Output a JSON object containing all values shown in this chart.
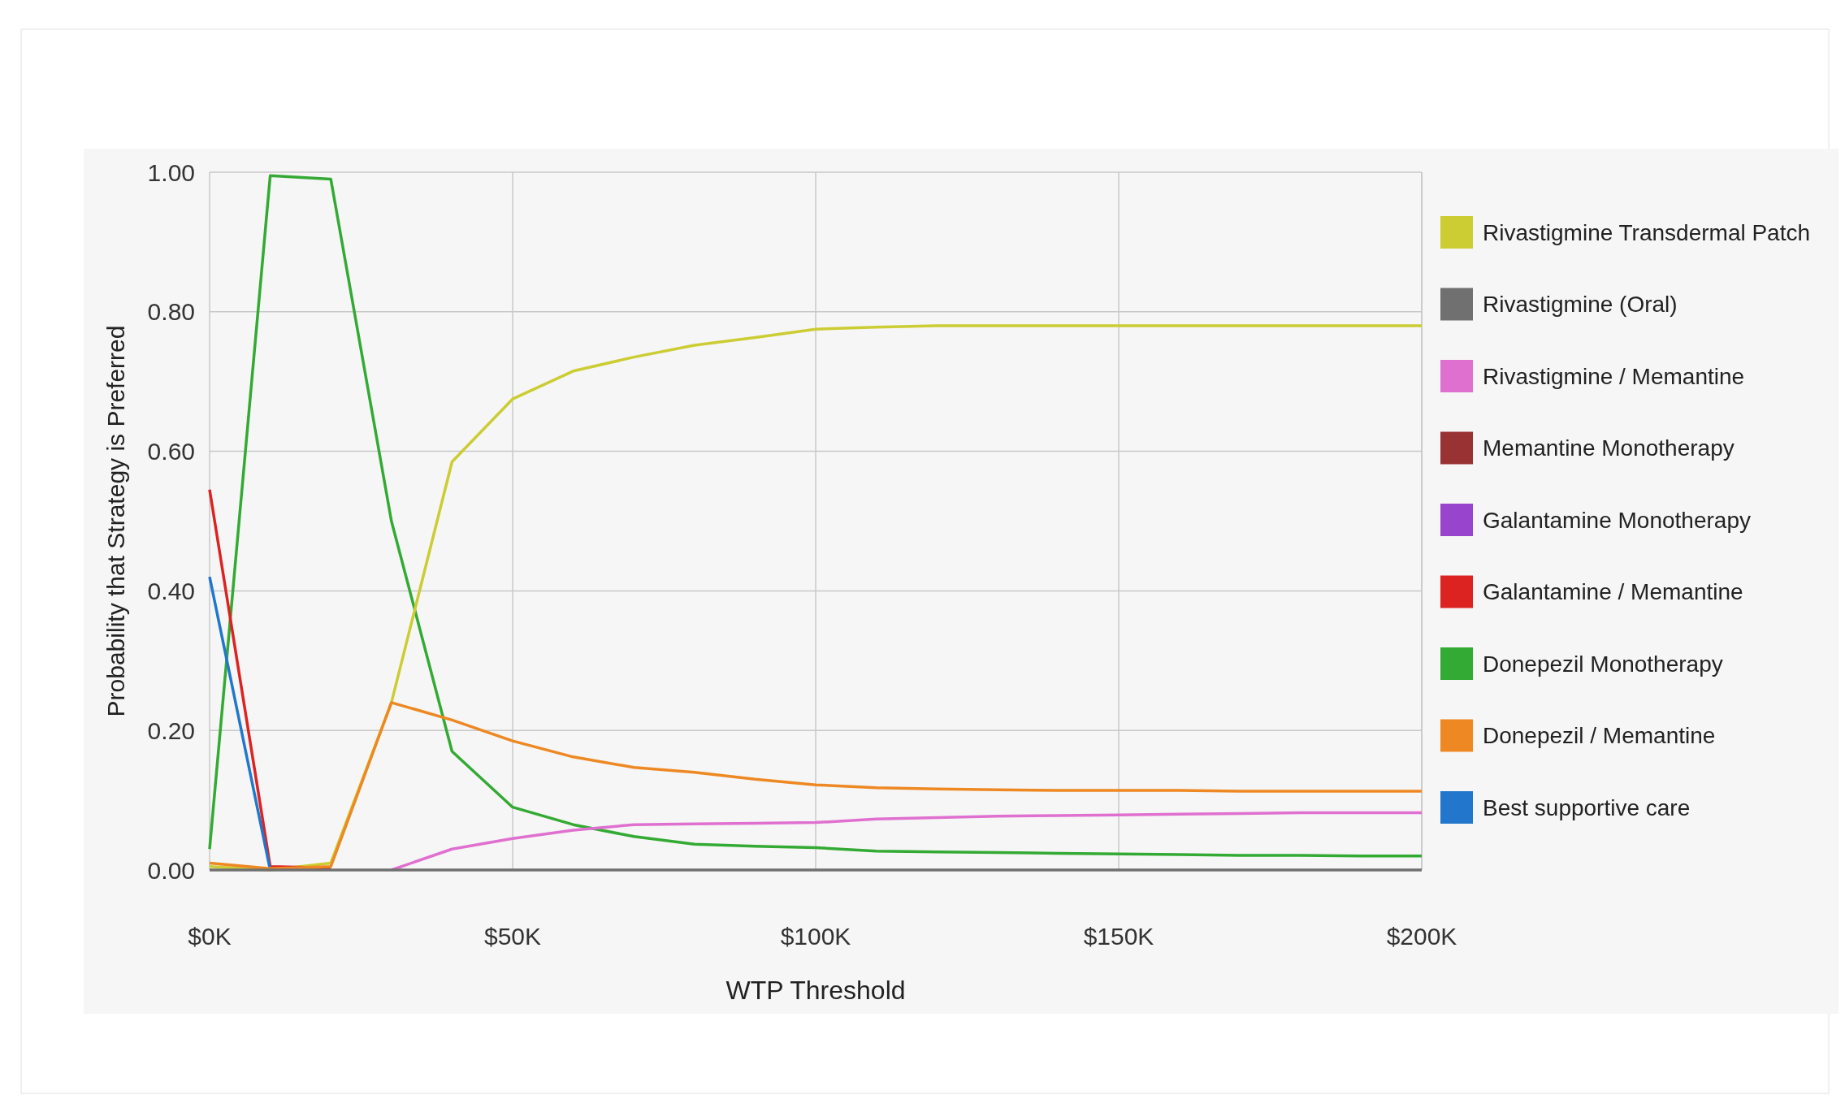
{
  "chart_data": {
    "type": "line",
    "xlabel": "WTP Threshold",
    "ylabel": "Probability that Strategy is Preferred",
    "x": [
      0,
      10,
      20,
      30,
      40,
      50,
      60,
      70,
      80,
      90,
      100,
      110,
      120,
      130,
      140,
      150,
      160,
      170,
      180,
      190,
      200
    ],
    "xlim": [
      0,
      200
    ],
    "xticks": [
      {
        "value": 0,
        "label": "$0K"
      },
      {
        "value": 50,
        "label": "$50K"
      },
      {
        "value": 100,
        "label": "$100K"
      },
      {
        "value": 150,
        "label": "$150K"
      },
      {
        "value": 200,
        "label": "$200K"
      }
    ],
    "ylim": [
      0,
      1
    ],
    "yticks": [
      {
        "value": 0,
        "label": "0.00"
      },
      {
        "value": 0.2,
        "label": "0.20"
      },
      {
        "value": 0.4,
        "label": "0.40"
      },
      {
        "value": 0.6,
        "label": "0.60"
      },
      {
        "value": 0.8,
        "label": "0.80"
      },
      {
        "value": 1,
        "label": "1.00"
      }
    ],
    "grid": true,
    "legend": "right",
    "marker": "none",
    "series": [
      {
        "name": "Rivastigmine Transdermal Patch",
        "color": "#cccc33",
        "values": [
          0.005,
          0,
          0.01,
          0.24,
          0.585,
          0.675,
          0.715,
          0.735,
          0.752,
          0.763,
          0.775,
          0.778,
          0.78,
          0.78,
          0.78,
          0.78,
          0.78,
          0.78,
          0.78,
          0.78,
          0.78
        ]
      },
      {
        "name": "Rivastigmine (Oral)",
        "color": "#707070",
        "values": [
          0,
          0,
          0,
          0,
          0,
          0,
          0,
          0,
          0,
          0,
          0,
          0,
          0,
          0,
          0,
          0,
          0,
          0,
          0,
          0,
          0
        ]
      },
      {
        "name": "Rivastigmine / Memantine",
        "color": "#e070d0",
        "values": [
          null,
          null,
          null,
          0,
          0.03,
          0.045,
          0.057,
          0.065,
          0.066,
          0.067,
          0.068,
          0.073,
          0.075,
          0.077,
          0.078,
          0.079,
          0.08,
          0.081,
          0.082,
          0.082,
          0.082
        ]
      },
      {
        "name": "Memantine Monotherapy",
        "color": "#993333",
        "values": [
          null,
          null,
          null,
          null,
          null,
          null,
          null,
          null,
          null,
          null,
          null,
          null,
          null,
          null,
          null,
          null,
          null,
          null,
          null,
          null,
          null
        ]
      },
      {
        "name": "Galantamine Monotherapy",
        "color": "#9944cc",
        "values": [
          null,
          null,
          null,
          null,
          null,
          null,
          null,
          null,
          null,
          null,
          null,
          null,
          null,
          null,
          null,
          null,
          null,
          null,
          null,
          null,
          null
        ]
      },
      {
        "name": "Galantamine / Memantine",
        "color": "#dd2222",
        "values": [
          0.545,
          0.005,
          0.003,
          null,
          null,
          null,
          null,
          null,
          null,
          null,
          null,
          null,
          null,
          null,
          null,
          null,
          null,
          null,
          null,
          null,
          null
        ]
      },
      {
        "name": "Donepezil Monotherapy",
        "color": "#33aa33",
        "values": [
          0.03,
          0.995,
          0.99,
          0.5,
          0.17,
          0.09,
          0.065,
          0.048,
          0.037,
          0.034,
          0.032,
          0.027,
          0.026,
          0.025,
          0.024,
          0.023,
          0.022,
          0.021,
          0.021,
          0.02,
          0.02
        ]
      },
      {
        "name": "Donepezil / Memantine",
        "color": "#ee8822",
        "values": [
          0.01,
          0.002,
          0.005,
          0.24,
          0.215,
          0.185,
          0.162,
          0.147,
          0.14,
          0.13,
          0.122,
          0.118,
          0.116,
          0.115,
          0.114,
          0.114,
          0.114,
          0.113,
          0.113,
          0.113,
          0.113
        ]
      },
      {
        "name": "Best supportive care",
        "color": "#2277cc",
        "values": [
          0.42,
          0,
          null,
          null,
          null,
          null,
          null,
          null,
          null,
          null,
          null,
          null,
          null,
          null,
          null,
          null,
          null,
          null,
          null,
          null,
          null
        ]
      }
    ]
  }
}
